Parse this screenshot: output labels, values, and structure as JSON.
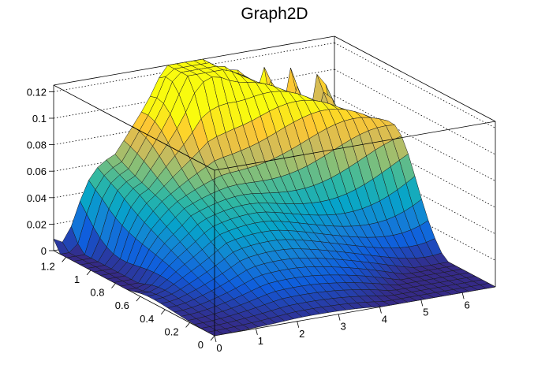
{
  "chart_data": {
    "type": "surface",
    "title": "Graph2D",
    "xlabel": "",
    "ylabel": "",
    "zlabel": "",
    "xlim": [
      0,
      6.8
    ],
    "ylim": [
      0,
      1.3
    ],
    "zlim": [
      0,
      0.125
    ],
    "x_ticks": [
      "0",
      "1",
      "2",
      "3",
      "4",
      "5",
      "6"
    ],
    "y_ticks": [
      "0",
      "0.2",
      "0.4",
      "0.6",
      "0.8",
      "1",
      "1.2"
    ],
    "z_ticks": [
      "0",
      "0.02",
      "0.04",
      "0.06",
      "0.08",
      "0.1",
      "0.12"
    ],
    "grid": true,
    "colormap": [
      "#352a87",
      "#0f5cdd",
      "#1481d6",
      "#06a4ca",
      "#2eb7a4",
      "#87bf77",
      "#d1bb59",
      "#fec832",
      "#f9fb0e"
    ],
    "grid_size": {
      "nx": 32,
      "ny": 24
    },
    "surface_features": [
      {
        "name": "ridge-top-edge",
        "y": 1.2,
        "x_range": [
          0,
          3
        ],
        "z": 0.082,
        "note": "plateau along y=1.2 rising toward x=3"
      },
      {
        "name": "peak",
        "x": 3.1,
        "y": 1.2,
        "z": 0.1
      },
      {
        "name": "diagonal-crest",
        "from": [
          3.1,
          1.2
        ],
        "to": [
          6.8,
          0.8
        ],
        "z": 0.075
      },
      {
        "name": "valley",
        "x": 0,
        "y": 0,
        "z": 0.0
      },
      {
        "name": "spikes",
        "x_range": [
          3.3,
          3.8
        ],
        "y": 1.25,
        "z": 0.12
      },
      {
        "name": "serrated-back-edge",
        "x_range": [
          3.5,
          6.8
        ],
        "y": 1.3,
        "z_range": [
          0.03,
          0.09
        ]
      },
      {
        "name": "left-dip",
        "x": 0,
        "y": 1.1,
        "z": 0.002
      }
    ]
  }
}
